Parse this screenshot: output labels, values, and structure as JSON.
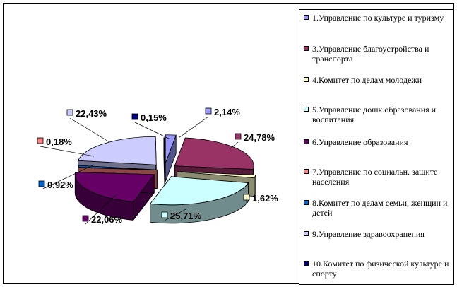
{
  "chart_data": {
    "type": "pie",
    "style": "3d-exploded",
    "legend_position": "right",
    "slices": [
      {
        "legend": "1.Управление по культуре и туризму",
        "value": 2.14,
        "label": "2,14%",
        "color": "#9999ff"
      },
      {
        "legend": "3.Управление благоустройства и транспорта",
        "value": 24.78,
        "label": "24,78%",
        "color": "#993366"
      },
      {
        "legend": "4.Комитет по делам молодежи",
        "value": 1.62,
        "label": "1,62%",
        "color": "#ffffcc"
      },
      {
        "legend": "5.Управление дошк.образования и воспитания",
        "value": 25.71,
        "label": "25,71%",
        "color": "#ccffff"
      },
      {
        "legend": "6.Управление образования",
        "value": 22.06,
        "label": "22,06%",
        "color": "#660066"
      },
      {
        "legend": "7.Управление по социальн. защите населения",
        "value": 0.18,
        "label": "0,18%",
        "color": "#ff8080"
      },
      {
        "legend": "8.Комитет по делам семьи, женщин и детей",
        "value": 0.92,
        "label": "0,92%",
        "color": "#0066cc"
      },
      {
        "legend": "9.Управление здравоохранения",
        "value": 22.43,
        "label": "22,43%",
        "color": "#ccccff"
      },
      {
        "legend": "10.Комитет по физической культуре и спорту",
        "value": 0.15,
        "label": "0,15%",
        "color": "#000080"
      }
    ]
  }
}
